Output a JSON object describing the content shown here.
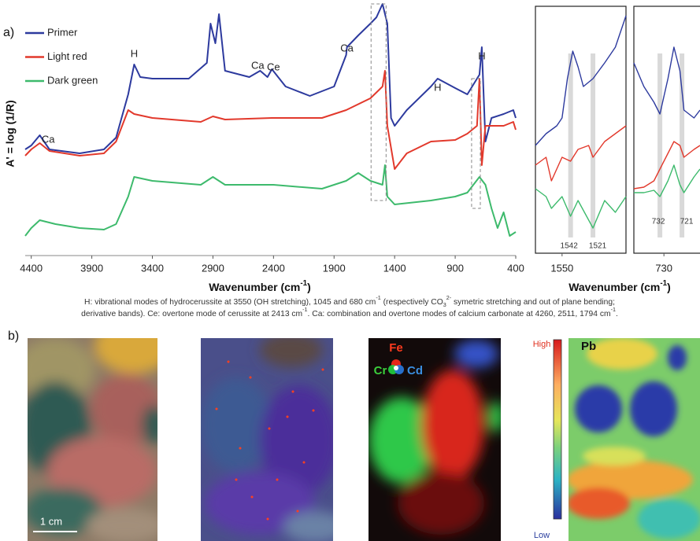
{
  "label": "a)",
  "chart_data": [
    {
      "type": "line",
      "ylabel": "A' = log (1/R)",
      "xlabel": [
        {
          "text": "Wavenumber (cm"
        },
        {
          "text": "-1",
          "style": "sup"
        },
        {
          "text": ")"
        }
      ],
      "xlim": [
        4450,
        400
      ],
      "xticks": [
        4400,
        3900,
        3400,
        2900,
        2400,
        1900,
        1400,
        900,
        400
      ],
      "ylim": [
        0,
        320
      ],
      "legend": "upper-left",
      "series": [
        {
          "name": "Primer",
          "color": "#2d3a9e",
          "x": [
            4450,
            4400,
            4330,
            4250,
            4000,
            3800,
            3700,
            3600,
            3550,
            3500,
            3400,
            3100,
            2950,
            2920,
            2880,
            2850,
            2800,
            2600,
            2510,
            2450,
            2413,
            2300,
            2100,
            1900,
            1800,
            1794,
            1700,
            1600,
            1550,
            1500,
            1460,
            1430,
            1400,
            1300,
            1100,
            1045,
            900,
            800,
            700,
            680,
            650,
            600,
            500,
            420,
            400
          ],
          "values": [
            135,
            140,
            153,
            135,
            130,
            135,
            150,
            205,
            243,
            227,
            225,
            225,
            245,
            295,
            270,
            307,
            235,
            227,
            235,
            227,
            237,
            215,
            203,
            215,
            255,
            265,
            280,
            295,
            303,
            320,
            295,
            175,
            165,
            185,
            215,
            225,
            213,
            205,
            230,
            265,
            145,
            175,
            180,
            185,
            175
          ]
        },
        {
          "name": "Light red",
          "color": "#e2392c",
          "x": [
            4450,
            4400,
            4330,
            4250,
            4000,
            3800,
            3700,
            3600,
            3550,
            3400,
            3000,
            2900,
            2800,
            2413,
            2000,
            1800,
            1600,
            1500,
            1480,
            1460,
            1400,
            1300,
            1100,
            900,
            800,
            720,
            700,
            680,
            650,
            500,
            420,
            400
          ],
          "values": [
            127,
            135,
            143,
            133,
            127,
            130,
            145,
            185,
            180,
            175,
            170,
            177,
            173,
            175,
            175,
            185,
            200,
            215,
            235,
            165,
            110,
            130,
            145,
            147,
            155,
            165,
            225,
            115,
            165,
            165,
            170,
            160
          ]
        },
        {
          "name": "Dark green",
          "color": "#3dba6c",
          "x": [
            4450,
            4400,
            4330,
            4200,
            4000,
            3800,
            3700,
            3600,
            3550,
            3400,
            3000,
            2900,
            2800,
            2400,
            2000,
            1800,
            1700,
            1600,
            1500,
            1480,
            1460,
            1400,
            1100,
            900,
            800,
            700,
            650,
            600,
            550,
            500,
            450,
            400
          ],
          "values": [
            25,
            35,
            45,
            40,
            35,
            33,
            40,
            75,
            100,
            95,
            90,
            100,
            90,
            90,
            85,
            95,
            105,
            95,
            90,
            115,
            75,
            65,
            70,
            75,
            80,
            100,
            90,
            60,
            35,
            55,
            25,
            30
          ]
        }
      ],
      "annotations": [
        {
          "text": "Ca",
          "x": 4260,
          "y": 147
        },
        {
          "text": "H",
          "x": 3550,
          "y": 256
        },
        {
          "text": "Ca",
          "x": 2530,
          "y": 241
        },
        {
          "text": "Ce",
          "x": 2400,
          "y": 239
        },
        {
          "text": "Ca",
          "x": 1794,
          "y": 263
        },
        {
          "text": "H",
          "x": 1045,
          "y": 213
        },
        {
          "text": "H",
          "x": 680,
          "y": 253
        }
      ]
    },
    {
      "type": "line",
      "xlabel": [
        {
          "text": "Wavenumber (cm"
        },
        {
          "text": "-1",
          "style": "sup"
        },
        {
          "text": ")"
        }
      ],
      "xlim": [
        1575,
        1490
      ],
      "xticks": [
        1550
      ],
      "ylim": [
        0,
        314
      ],
      "bands": [
        1542,
        1521
      ],
      "series": [
        {
          "color": "#2d3a9e",
          "x": [
            1575,
            1565,
            1555,
            1550,
            1545,
            1540,
            1535,
            1530,
            1521,
            1510,
            1500,
            1490
          ],
          "values": [
            137,
            152,
            162,
            172,
            222,
            257,
            237,
            212,
            222,
            242,
            262,
            302
          ]
        },
        {
          "color": "#e2392c",
          "x": [
            1575,
            1565,
            1560,
            1550,
            1542,
            1535,
            1525,
            1521,
            1510,
            1490
          ],
          "values": [
            112,
            122,
            92,
            122,
            117,
            132,
            137,
            122,
            142,
            162
          ]
        },
        {
          "color": "#3dba6c",
          "x": [
            1575,
            1565,
            1560,
            1550,
            1542,
            1535,
            1521,
            1510,
            1500,
            1490
          ],
          "values": [
            82,
            72,
            57,
            72,
            47,
            67,
            32,
            67,
            52,
            72
          ]
        }
      ]
    },
    {
      "type": "line",
      "xlim": [
        745,
        712
      ],
      "xticks": [
        730
      ],
      "ylim": [
        0,
        314
      ],
      "bands": [
        732,
        721
      ],
      "series": [
        {
          "color": "#2d3a9e",
          "x": [
            745,
            740,
            735,
            732,
            728,
            725,
            722,
            720,
            715,
            712
          ],
          "values": [
            242,
            212,
            192,
            177,
            222,
            262,
            232,
            182,
            172,
            182
          ]
        },
        {
          "color": "#e2392c",
          "x": [
            745,
            740,
            735,
            732,
            728,
            725,
            722,
            720,
            715,
            712
          ],
          "values": [
            82,
            84,
            92,
            107,
            127,
            142,
            137,
            122,
            132,
            137
          ]
        },
        {
          "color": "#3dba6c",
          "x": [
            745,
            740,
            735,
            732,
            728,
            725,
            722,
            720,
            715,
            712
          ],
          "values": [
            77,
            77,
            80,
            72,
            92,
            112,
            87,
            77,
            97,
            107
          ]
        }
      ]
    }
  ],
  "caption": [
    [
      {
        "text": "H: vibrational modes of hydrocerussite at 3550 (OH stretching), 1045 and 680 cm"
      },
      {
        "text": "-1",
        "style": "sup"
      },
      {
        "text": " (respectively CO"
      },
      {
        "text": "3",
        "style": "sub"
      },
      {
        "text": "2-",
        "style": "sup"
      },
      {
        "text": " symetric stretching and out of plane bending;"
      }
    ],
    [
      {
        "text": "derivative bands). Ce: overtone mode of cerussite at 2413 cm"
      },
      {
        "text": "-1",
        "style": "sup"
      },
      {
        "text": ". Ca: combination and overtone modes of calcium carbonate at 4260, 2511, 1794 cm"
      },
      {
        "text": "-1",
        "style": "sup"
      },
      {
        "text": "."
      }
    ]
  ],
  "panel_b": {
    "label": "b)",
    "scale_bar": "1 cm",
    "rgb": {
      "fe": "Fe",
      "cr": "Cr",
      "cd": "Cd"
    },
    "colorbar": {
      "high": "High",
      "low": "Low"
    },
    "element": "Pb"
  }
}
